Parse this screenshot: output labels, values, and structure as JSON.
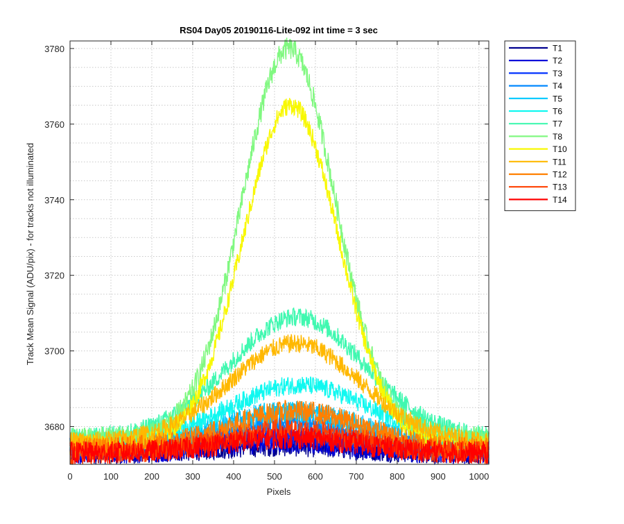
{
  "chart_data": {
    "type": "line",
    "title": "RS04 Day05 20190116-Lite-092 int time = 3 sec",
    "xlabel": "Pixels",
    "ylabel": "Track Mean Signal (ADU/pix) - for tracks not illuminated",
    "xlim": [
      0,
      1024
    ],
    "ylim": [
      3670,
      3782
    ],
    "xticks": [
      0,
      100,
      200,
      300,
      400,
      500,
      600,
      700,
      800,
      900,
      1000
    ],
    "yticks": [
      3680,
      3700,
      3720,
      3740,
      3760,
      3780
    ],
    "grid": "dotted, minor horizontal",
    "legend_position": "outside top-right",
    "series": [
      {
        "name": "T1",
        "color": "#00008f",
        "baseline": 3673,
        "peak": 3675,
        "center": 520,
        "width": 320,
        "noise": 3
      },
      {
        "name": "T2",
        "color": "#0000d8",
        "baseline": 3673,
        "peak": 3676,
        "center": 520,
        "width": 320,
        "noise": 3
      },
      {
        "name": "T3",
        "color": "#0030ff",
        "baseline": 3674,
        "peak": 3678,
        "center": 520,
        "width": 320,
        "noise": 3
      },
      {
        "name": "T4",
        "color": "#0088ff",
        "baseline": 3674,
        "peak": 3681,
        "center": 530,
        "width": 330,
        "noise": 3
      },
      {
        "name": "T5",
        "color": "#00c8ff",
        "baseline": 3675,
        "peak": 3684,
        "center": 540,
        "width": 330,
        "noise": 3
      },
      {
        "name": "T6",
        "color": "#10f8f0",
        "baseline": 3676,
        "peak": 3691,
        "center": 560,
        "width": 340,
        "noise": 2.5
      },
      {
        "name": "T7",
        "color": "#40f8b0",
        "baseline": 3677,
        "peak": 3709,
        "center": 555,
        "width": 330,
        "noise": 2.5
      },
      {
        "name": "T8",
        "color": "#80f880",
        "baseline": 3677,
        "peak": 3780,
        "center": 535,
        "width": 230,
        "noise": 3
      },
      {
        "name": "T10",
        "color": "#f8f800",
        "baseline": 3675,
        "peak": 3765,
        "center": 540,
        "width": 235,
        "noise": 2.5
      },
      {
        "name": "T11",
        "color": "#ffb800",
        "baseline": 3676,
        "peak": 3702,
        "center": 550,
        "width": 320,
        "noise": 2.5
      },
      {
        "name": "T12",
        "color": "#ff8000",
        "baseline": 3674,
        "peak": 3684,
        "center": 550,
        "width": 330,
        "noise": 3
      },
      {
        "name": "T13",
        "color": "#ff4000",
        "baseline": 3673,
        "peak": 3679,
        "center": 540,
        "width": 330,
        "noise": 3
      },
      {
        "name": "T14",
        "color": "#ff0000",
        "baseline": 3673,
        "peak": 3677,
        "center": 540,
        "width": 330,
        "noise": 3
      }
    ]
  }
}
